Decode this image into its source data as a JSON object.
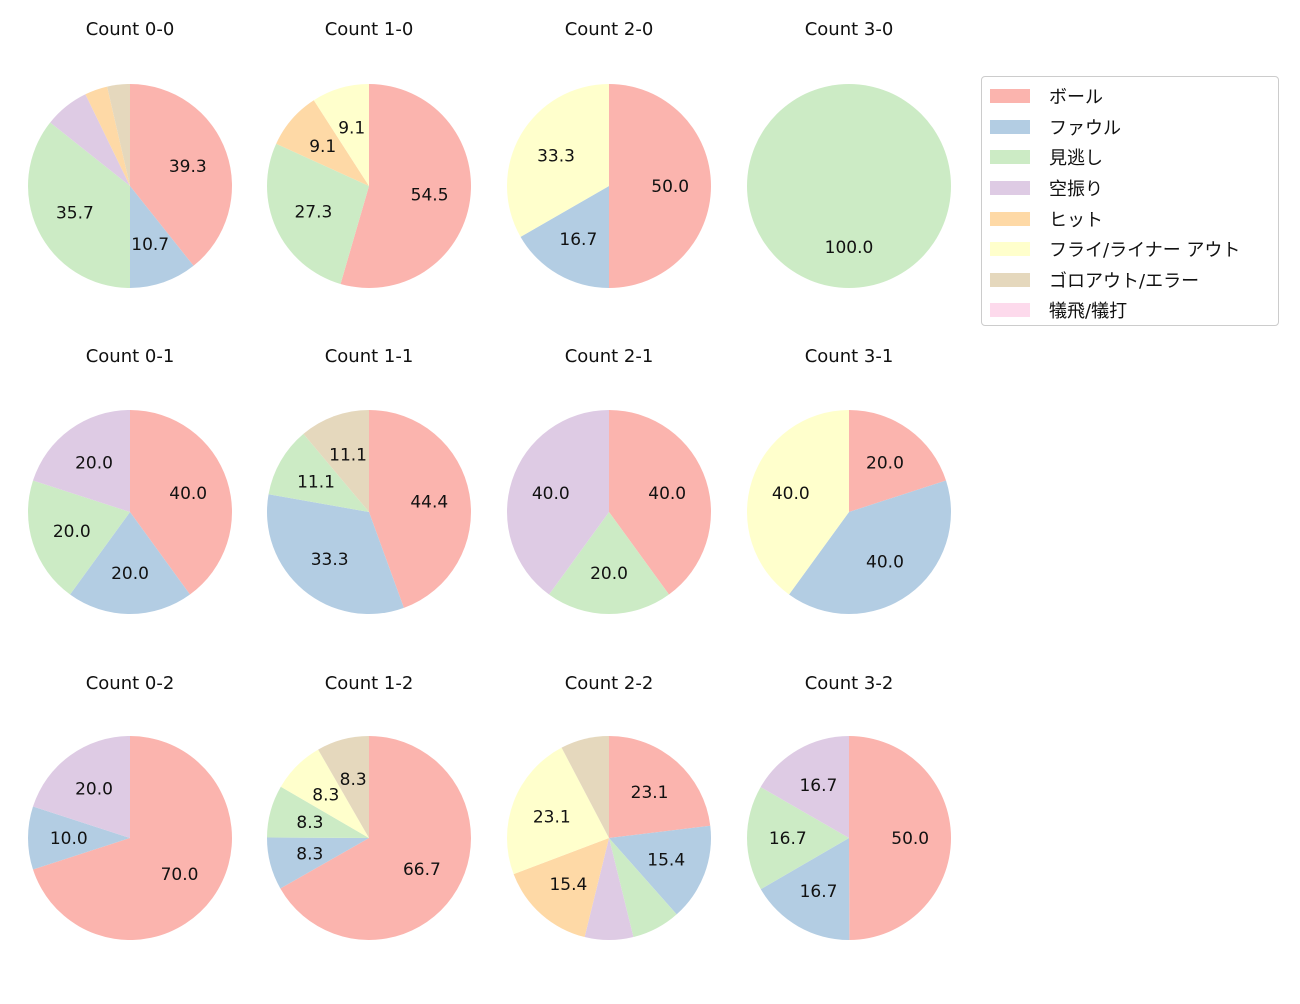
{
  "chart_data": {
    "type": "pie",
    "categories": [
      "ボール",
      "ファウル",
      "見逃し",
      "空振り",
      "ヒット",
      "フライ/ライナー アウト",
      "ゴロアウト/エラー",
      "犠飛/犠打"
    ],
    "colors": [
      "#fbb4ae",
      "#b3cde3",
      "#ccebc5",
      "#decbe4",
      "#fed9a6",
      "#ffffcc",
      "#e5d8bd",
      "#fddaec"
    ],
    "legend_position": "right",
    "start_angle": 90,
    "direction": "clockwise",
    "pies": [
      {
        "title": "Count 0-0",
        "values": [
          39.3,
          10.7,
          35.7,
          7.1,
          3.6,
          0,
          3.6,
          0
        ]
      },
      {
        "title": "Count 1-0",
        "values": [
          54.5,
          0,
          27.3,
          0,
          9.1,
          9.1,
          0,
          0
        ]
      },
      {
        "title": "Count 2-0",
        "values": [
          50.0,
          16.7,
          0,
          0,
          0,
          33.3,
          0,
          0
        ]
      },
      {
        "title": "Count 3-0",
        "values": [
          0,
          0,
          100.0,
          0,
          0,
          0,
          0,
          0
        ]
      },
      {
        "title": "Count 0-1",
        "values": [
          40.0,
          20.0,
          20.0,
          20.0,
          0,
          0,
          0,
          0
        ]
      },
      {
        "title": "Count 1-1",
        "values": [
          44.4,
          33.3,
          11.1,
          0,
          0,
          0,
          11.1,
          0
        ]
      },
      {
        "title": "Count 2-1",
        "values": [
          40.0,
          0,
          20.0,
          40.0,
          0,
          0,
          0,
          0
        ]
      },
      {
        "title": "Count 3-1",
        "values": [
          20.0,
          40.0,
          0,
          0,
          0,
          40.0,
          0,
          0
        ]
      },
      {
        "title": "Count 0-2",
        "values": [
          70.0,
          10.0,
          0,
          20.0,
          0,
          0,
          0,
          0
        ]
      },
      {
        "title": "Count 1-2",
        "values": [
          66.7,
          8.3,
          8.3,
          0,
          0,
          8.3,
          8.3,
          0
        ]
      },
      {
        "title": "Count 2-2",
        "values": [
          23.1,
          15.4,
          7.7,
          7.7,
          15.4,
          23.1,
          7.7,
          0
        ]
      },
      {
        "title": "Count 3-2",
        "values": [
          50.0,
          16.7,
          16.7,
          16.7,
          0,
          0,
          0,
          0
        ]
      }
    ]
  }
}
